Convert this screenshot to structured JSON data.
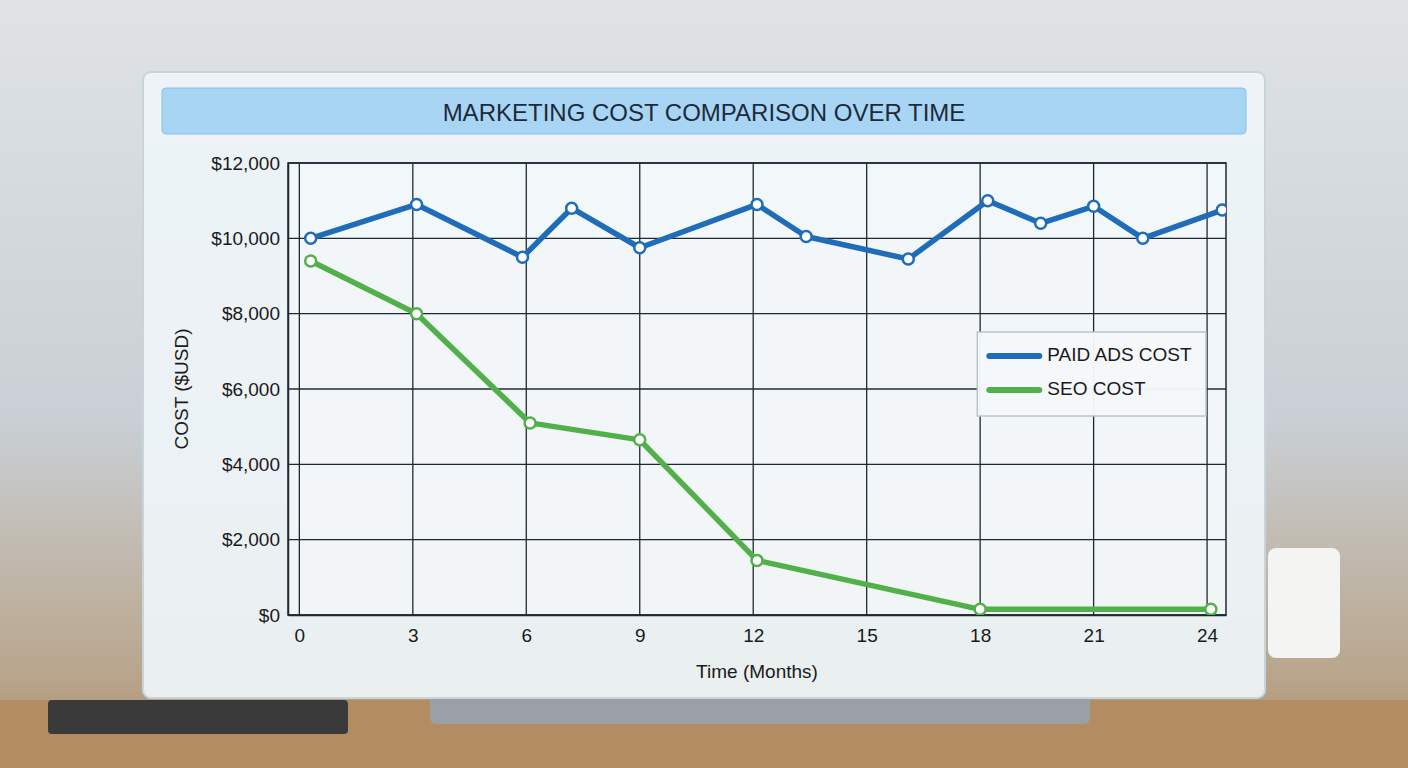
{
  "chart_data": {
    "type": "line",
    "title": "MARKETING COST COMPARISON OVER TIME",
    "x_label": "Time (Months)",
    "y_label": "COST ($USD)",
    "xlim": [
      -0.3,
      24.5
    ],
    "xticks": [
      0,
      3,
      6,
      9,
      12,
      15,
      18,
      21,
      24
    ],
    "ylim": [
      0,
      12000
    ],
    "yticks": [
      {
        "value": 0,
        "label": "$0"
      },
      {
        "value": 2000,
        "label": "$2,000"
      },
      {
        "value": 4000,
        "label": "$4,000"
      },
      {
        "value": 6000,
        "label": "$6,000"
      },
      {
        "value": 8000,
        "label": "$8,000"
      },
      {
        "value": 10000,
        "label": "$10,000"
      },
      {
        "value": 12000,
        "label": "$12,000"
      }
    ],
    "grid": true,
    "legend": "right",
    "series": [
      {
        "name": "PAID ADS COST",
        "color": "#1f6cb8",
        "marker": "circle",
        "line_style": "solid",
        "x": [
          0.3,
          3.1,
          5.9,
          7.2,
          9,
          12.1,
          13.4,
          16.1,
          18.2,
          19.6,
          21,
          22.3,
          24.4
        ],
        "values": [
          10000,
          10900,
          9500,
          10800,
          9750,
          10900,
          10050,
          9450,
          11000,
          10400,
          10850,
          10000,
          10750
        ]
      },
      {
        "name": "SEO COST",
        "color": "#52b04a",
        "marker": "circle",
        "line_style": "solid",
        "x": [
          0.3,
          3.1,
          6.1,
          9,
          12.1,
          18,
          24.1
        ],
        "values": [
          9400,
          8000,
          5100,
          4650,
          1450,
          150,
          150
        ]
      }
    ]
  }
}
